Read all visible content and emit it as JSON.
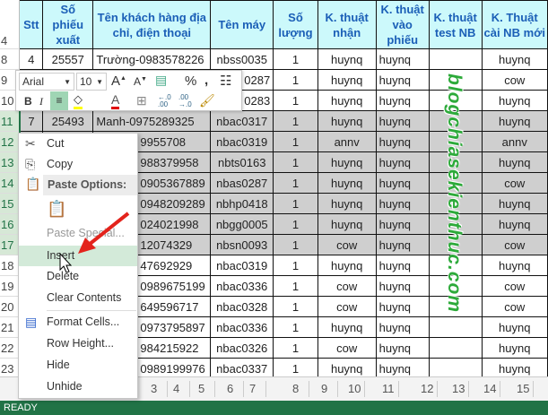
{
  "headers": {
    "row_label": "4",
    "stt": "Stt",
    "phieu": "Số phiếu xuất",
    "khach": "Tên khách hàng địa chỉ, điện thoại",
    "may": "Tên máy",
    "sl": "Số lượng",
    "nhan": "K. thuật nhận",
    "vao": "K. thuật vào phiếu",
    "test": "K. thuật test NB",
    "cai": "K. Thuật cài NB mới"
  },
  "rows": [
    {
      "n": "8",
      "stt": "4",
      "phieu": "25557",
      "khach": "Trường-0983578226",
      "may": "nbss0035",
      "sl": "1",
      "nhan": "huynq",
      "vao": "huynq",
      "test": "",
      "cai": "huynq"
    },
    {
      "n": "9",
      "stt": "",
      "phieu": "",
      "khach": "",
      "may": "0287",
      "sl": "1",
      "nhan": "huynq",
      "vao": "huynq",
      "test": "",
      "cai": "cow"
    },
    {
      "n": "10",
      "stt": "",
      "phieu": "",
      "khach": "",
      "may": "0283",
      "sl": "1",
      "nhan": "huynq",
      "vao": "huynq",
      "test": "",
      "cai": "huynq"
    },
    {
      "n": "11",
      "stt": "7",
      "phieu": "25493",
      "khach": "Manh-0975289325",
      "may": "nbac0317",
      "sl": "1",
      "nhan": "huynq",
      "vao": "huynq",
      "test": "",
      "cai": "huynq"
    },
    {
      "n": "12",
      "khach": "9955708",
      "may": "nbac0319",
      "sl": "1",
      "nhan": "annv",
      "vao": "huynq",
      "test": "",
      "cai": "annv"
    },
    {
      "n": "13",
      "khach": "988379958",
      "may": "nbts0163",
      "sl": "1",
      "nhan": "huynq",
      "vao": "huynq",
      "test": "",
      "cai": "huynq"
    },
    {
      "n": "14",
      "khach": "0905367889",
      "may": "nbas0287",
      "sl": "1",
      "nhan": "huynq",
      "vao": "huynq",
      "test": "",
      "cai": "cow"
    },
    {
      "n": "15",
      "khach": "0948209289",
      "may": "nbhp0418",
      "sl": "1",
      "nhan": "huynq",
      "vao": "huynq",
      "test": "",
      "cai": "huynq"
    },
    {
      "n": "16",
      "khach": "024021998",
      "may": "nbgg0005",
      "sl": "1",
      "nhan": "huynq",
      "vao": "huynq",
      "test": "",
      "cai": "huynq"
    },
    {
      "n": "17",
      "khach": "12074329",
      "may": "nbsn0093",
      "sl": "1",
      "nhan": "cow",
      "vao": "huynq",
      "test": "",
      "cai": "cow"
    },
    {
      "n": "18",
      "khach": "47692929",
      "may": "nbac0319",
      "sl": "1",
      "nhan": "huynq",
      "vao": "huynq",
      "test": "",
      "cai": "huynq"
    },
    {
      "n": "19",
      "khach": "0989675199",
      "may": "nbac0336",
      "sl": "1",
      "nhan": "cow",
      "vao": "huynq",
      "test": "",
      "cai": "cow"
    },
    {
      "n": "20",
      "khach": "649596717",
      "may": "nbac0328",
      "sl": "1",
      "nhan": "cow",
      "vao": "huynq",
      "test": "",
      "cai": "cow"
    },
    {
      "n": "21",
      "khach": "0973795897",
      "may": "nbac0336",
      "sl": "1",
      "nhan": "huynq",
      "vao": "huynq",
      "test": "",
      "cai": "huynq"
    },
    {
      "n": "22",
      "khach": "984215922",
      "may": "nbac0326",
      "sl": "1",
      "nhan": "cow",
      "vao": "huynq",
      "test": "",
      "cai": "huynq"
    },
    {
      "n": "23",
      "khach": "0989199976",
      "may": "nbac0337",
      "sl": "1",
      "nhan": "huynq",
      "vao": "huynq",
      "test": "",
      "cai": "huynq"
    }
  ],
  "selected_rows": [
    "11",
    "12",
    "13",
    "14",
    "15",
    "16",
    "17"
  ],
  "watermark": "blogchiasekienthuc.com",
  "mini_toolbar": {
    "font": "Arial",
    "size": "10",
    "percent": "%",
    "comma": ",",
    "bold": "B",
    "italic": "I",
    "font_color_letter": "A",
    "fill_color": "#ffff00",
    "font_color": "#e00000"
  },
  "menu": {
    "cut": "Cut",
    "copy": "Copy",
    "paste_options": "Paste Options:",
    "paste_special": "Paste Special...",
    "insert": "Insert",
    "delete": "Delete",
    "clear": "Clear Contents",
    "format_cells": "Format Cells...",
    "row_height": "Row Height...",
    "hide": "Hide",
    "unhide": "Unhide"
  },
  "pages": [
    "3",
    "4",
    "5",
    "6",
    "7",
    "8",
    "9",
    "10",
    "11",
    "12",
    "13",
    "14",
    "15"
  ],
  "status": "READY",
  "colors": {
    "header_bg": "#ccf9fb",
    "header_text": "#1b5fb7",
    "status_bar": "#217346",
    "selection": "#cfcfcf",
    "arrow": "#e3231c"
  }
}
